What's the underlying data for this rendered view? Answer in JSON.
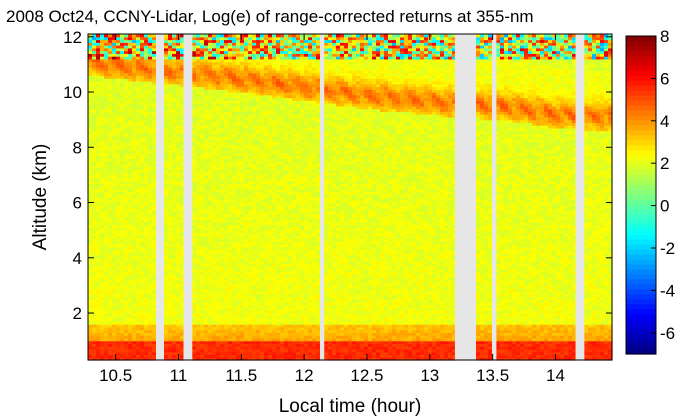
{
  "chart_data": {
    "type": "heatmap",
    "title": "2008 Oct24, CCNY-Lidar, Log(e) of range-corrected returns at 355-nm",
    "xlabel": "Local time (hour)",
    "ylabel": "Altitude (km)",
    "xlim": [
      10.28,
      14.45
    ],
    "ylim": [
      0.3,
      12.1
    ],
    "x_ticks": [
      10.5,
      11,
      11.5,
      12,
      12.5,
      13,
      13.5,
      14
    ],
    "x_tick_labels": [
      "10.5",
      "11",
      "11.5",
      "12",
      "12.5",
      "13",
      "13.5",
      "14"
    ],
    "y_ticks": [
      2,
      4,
      6,
      8,
      10,
      12
    ],
    "y_tick_labels": [
      "2",
      "4",
      "6",
      "8",
      "10",
      "12"
    ],
    "colorbar": {
      "range": [
        -7,
        8
      ],
      "ticks": [
        8,
        6,
        4,
        2,
        0,
        -2,
        -4,
        -6
      ],
      "tick_labels": [
        "8",
        "6",
        "4",
        "2",
        "0",
        "-2",
        "-4",
        "-6"
      ],
      "colormap": "jet"
    },
    "data_gaps_hours": [
      [
        10.83,
        10.87
      ],
      [
        11.04,
        11.11
      ],
      [
        12.14,
        12.16
      ],
      [
        13.2,
        13.36
      ],
      [
        13.5,
        13.53
      ],
      [
        14.16,
        14.23
      ]
    ],
    "layers": {
      "boundary_layer_top_km": 1.6,
      "surface_peak_km": [
        0.4,
        1.0
      ],
      "boundary_layer_log_signal": 5.2,
      "free_troposphere_log_signal": 2.2,
      "cirrus_base_km": [
        [
          10.3,
          10.8
        ],
        [
          11.5,
          10.2
        ],
        [
          12.5,
          9.6
        ],
        [
          13.2,
          9.3
        ],
        [
          13.6,
          9.2
        ],
        [
          14.0,
          8.9
        ],
        [
          14.45,
          8.8
        ]
      ],
      "cirrus_log_signal": 4.5,
      "noise_above_km": 11.2
    }
  }
}
